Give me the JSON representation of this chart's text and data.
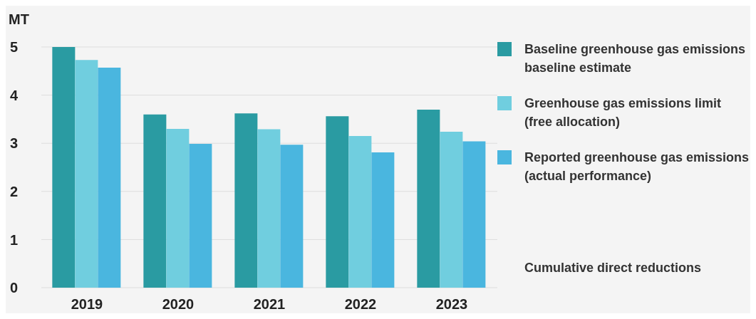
{
  "chart_data": {
    "type": "bar",
    "ylabel": "MT",
    "categories": [
      "2019",
      "2020",
      "2021",
      "2022",
      "2023"
    ],
    "series": [
      {
        "name": "Baseline greenhouse gas emissions baseline estimate",
        "color": "#2a9ba2",
        "values": [
          5.0,
          3.6,
          3.62,
          3.56,
          3.7
        ]
      },
      {
        "name": "Greenhouse gas emissions limit (free allocation)",
        "color": "#70cedf",
        "values": [
          4.73,
          3.3,
          3.29,
          3.15,
          3.24
        ]
      },
      {
        "name": "Reported greenhouse gas emissions (actual performance)",
        "color": "#4ab6df",
        "values": [
          4.57,
          2.99,
          2.97,
          2.81,
          3.04
        ]
      }
    ],
    "ylim": [
      0,
      5
    ],
    "yticks": [
      0,
      1,
      2,
      3,
      4,
      5
    ],
    "grid": "y",
    "legend": "right",
    "annotations": [
      "Cumulative direct reductions"
    ]
  }
}
